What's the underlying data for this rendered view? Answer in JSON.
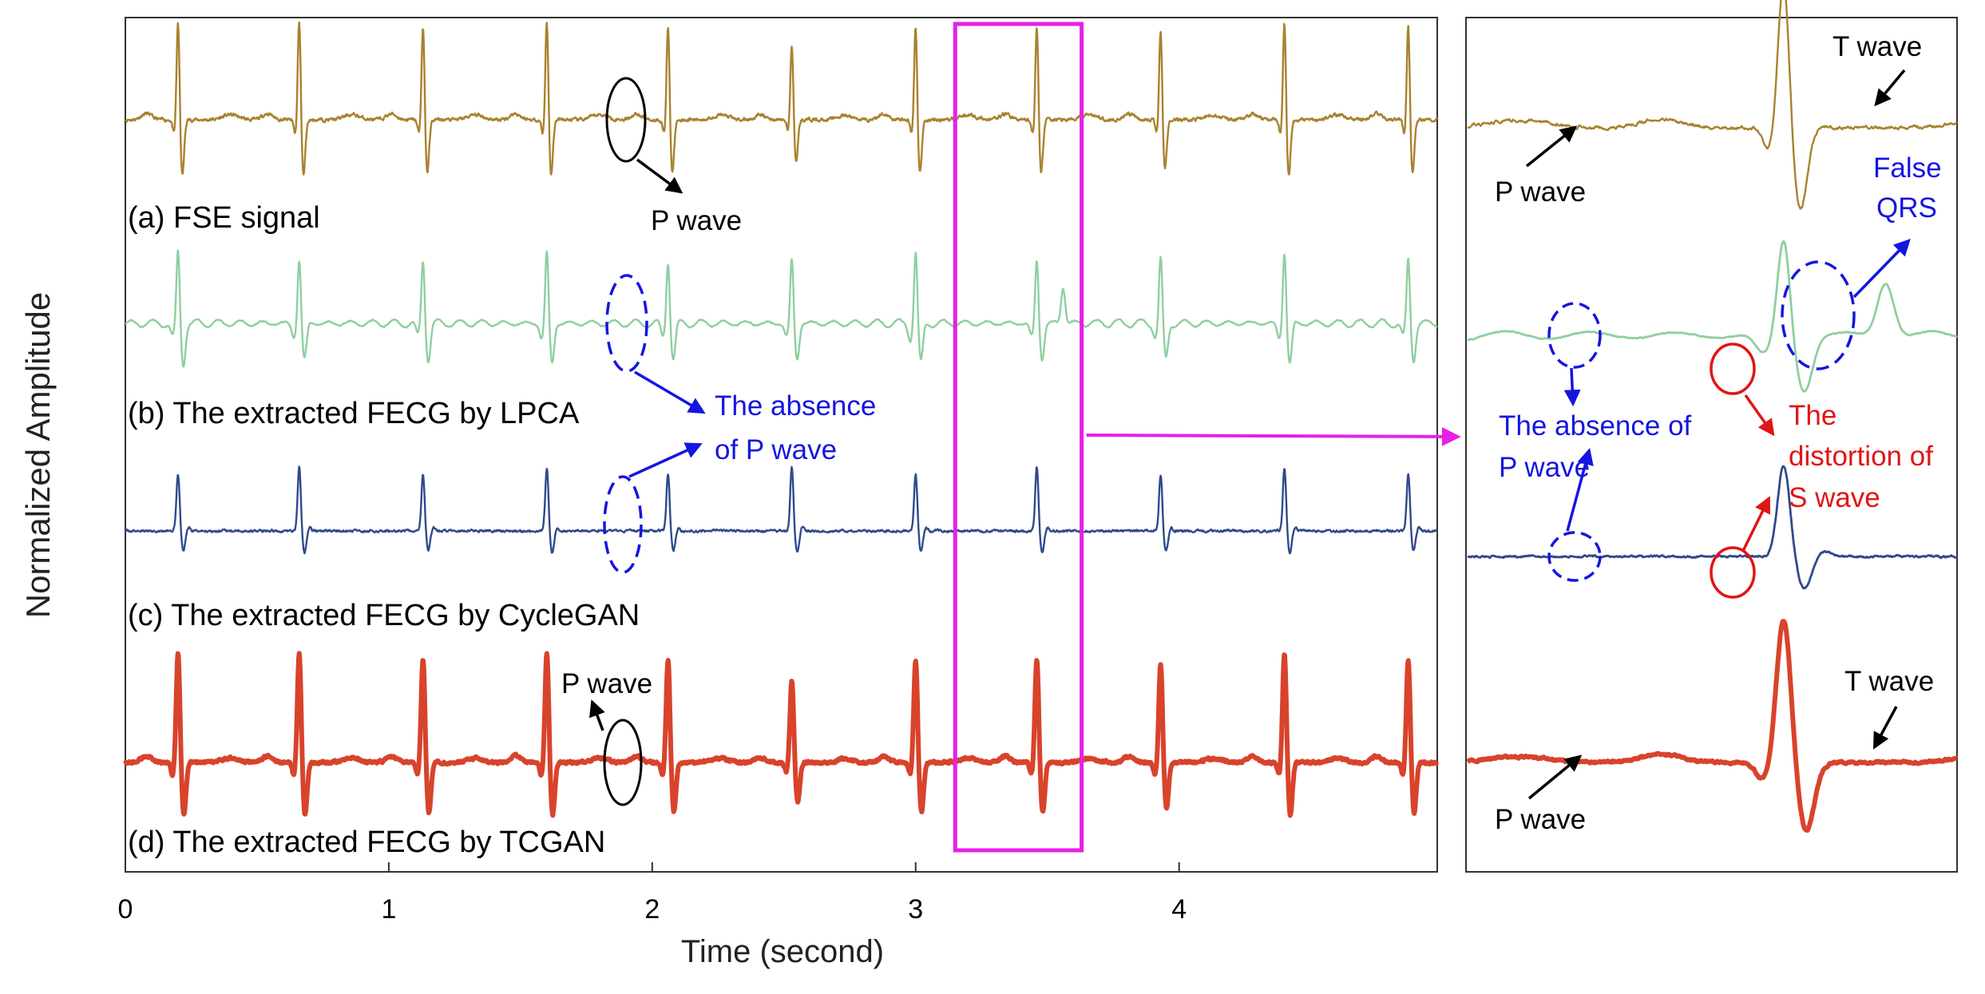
{
  "colors": {
    "fse": "#A8822E",
    "lpca": "#8FCFA0",
    "cyclegan": "#2F4A8C",
    "tcgan": "#D8432B",
    "highlight": "#E620E6",
    "blue_annotation": "#1515E0",
    "red_annotation": "#E01515",
    "black_annotation": "#000000"
  },
  "chart_data": {
    "type": "line",
    "xlabel": "Time (second)",
    "ylabel": "Normalized Amplitude",
    "xlim": [
      0,
      4.98
    ],
    "xticks": [
      "0",
      "1",
      "2",
      "3",
      "4"
    ],
    "xtick_values": [
      0,
      1,
      2,
      3,
      4
    ],
    "grid": false,
    "r_peak_times_s": [
      0.2,
      0.66,
      1.13,
      1.6,
      2.06,
      2.53,
      3.0,
      3.46,
      3.93,
      4.4,
      4.87
    ],
    "series": [
      {
        "name": "(a) FSE signal",
        "key": "fse",
        "normalized_r_amplitude": 1.0,
        "style": "thin"
      },
      {
        "name": "(b) The extracted FECG by LPCA",
        "key": "lpca",
        "normalized_r_amplitude": 0.85,
        "style": "thin",
        "false_qrs_time_s": 3.56
      },
      {
        "name": "(c) The extracted FECG by CycleGAN",
        "key": "cyclegan",
        "normalized_r_amplitude": 0.8,
        "style": "thin"
      },
      {
        "name": "(d) The extracted FECG by TCGAN",
        "key": "tcgan",
        "normalized_r_amplitude": 0.95,
        "style": "thick"
      }
    ],
    "zoom_window_s": [
      3.15,
      3.63
    ],
    "annotations_main": {
      "fse_p_wave": "P wave",
      "lpca_absence_line1": "The absence",
      "lpca_absence_line2": "of P wave",
      "tcgan_p_wave": "P wave"
    },
    "annotations_zoom": {
      "t_wave_top": "T wave",
      "p_wave_top": "P wave",
      "false_qrs_line1": "False",
      "false_qrs_line2": "QRS",
      "absence_line1": "The absence of",
      "absence_line2": "P wave",
      "distortion_line1": "The",
      "distortion_line2": "distortion of",
      "distortion_line3": "S wave",
      "t_wave_bottom": "T wave",
      "p_wave_bottom": "P wave"
    }
  }
}
